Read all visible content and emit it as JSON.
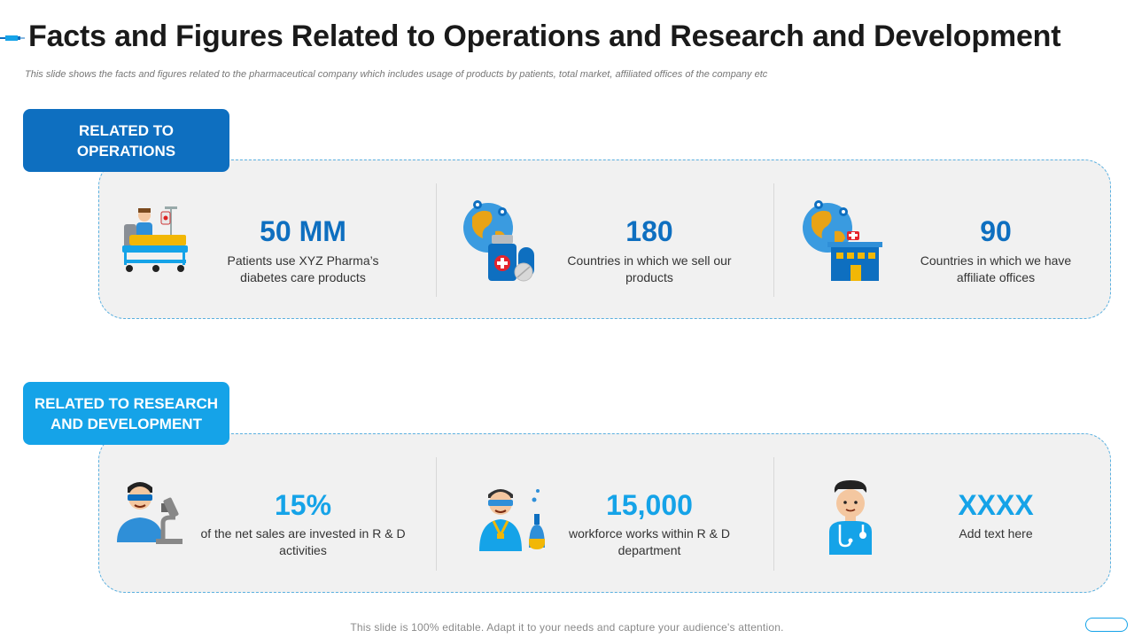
{
  "header": {
    "title": "Facts and Figures Related to Operations and Research and Development",
    "subtitle": "This slide shows the facts and figures related to the pharmaceutical company which includes usage of products by patients, total market, affiliated offices of the company etc"
  },
  "sections": {
    "operations": {
      "label": "RELATED TO OPERATIONS",
      "items": [
        {
          "icon": "hospital-patient-icon",
          "value": "50 MM",
          "text": "Patients use XYZ Pharma’s diabetes care products"
        },
        {
          "icon": "globe-medicine-icon",
          "value": "180",
          "text": "Countries in which we sell our products"
        },
        {
          "icon": "globe-office-icon",
          "value": "90",
          "text": "Countries in which we have affiliate offices"
        }
      ]
    },
    "research": {
      "label": "RELATED TO RESEARCH AND DEVELOPMENT",
      "items": [
        {
          "icon": "researcher-microscope-icon",
          "value": "15%",
          "text": "of the net sales are invested in R & D activities"
        },
        {
          "icon": "scientist-flask-icon",
          "value": "15,000",
          "text": "workforce works within R & D department"
        },
        {
          "icon": "doctor-icon",
          "value": "XXXX",
          "text": "Add text here"
        }
      ]
    }
  },
  "footer": {
    "text": "This slide is 100% editable. Adapt it to your needs and capture your audience's attention."
  },
  "colors": {
    "operations": "#0e6fc0",
    "research": "#15a3e8",
    "panel_bg": "#f1f1f1",
    "panel_border": "#5ab0e0"
  }
}
